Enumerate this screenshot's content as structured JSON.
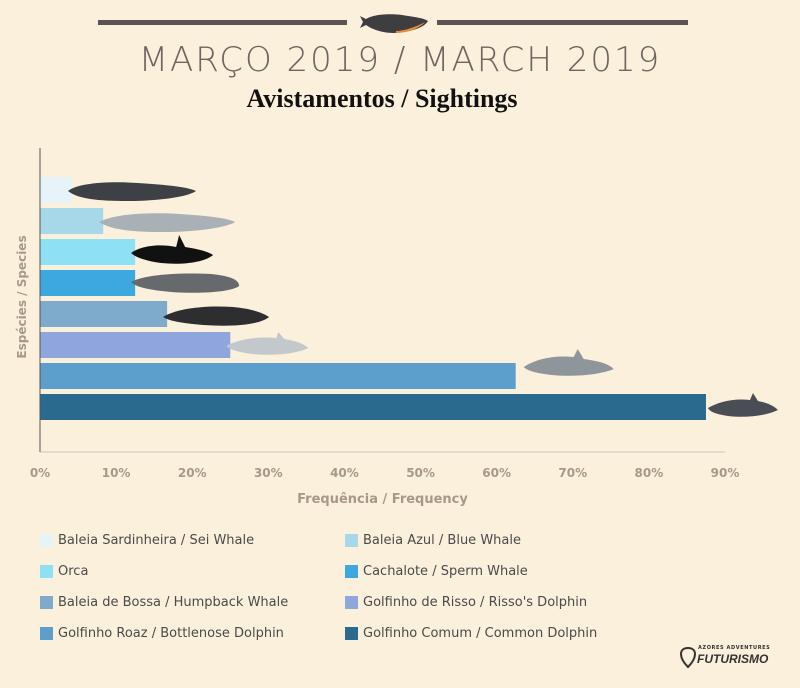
{
  "header": {
    "title": "MARÇO 2019 / MARCH 2019",
    "subtitle": "Avistamentos / Sightings",
    "whale_icon": "whale-silhouette-icon"
  },
  "chart_data": {
    "type": "bar",
    "orientation": "horizontal",
    "ylabel": "Espécies / Species",
    "xlabel": "Frequência / Frequency",
    "xlim": [
      0,
      90
    ],
    "xticks": [
      "0%",
      "10%",
      "20%",
      "30%",
      "40%",
      "50%",
      "60%",
      "70%",
      "80%",
      "90%"
    ],
    "grid": false,
    "legend_position": "bottom",
    "categories": [
      "Baleia Sardinheira / Sei Whale",
      "Baleia Azul / Blue Whale",
      "Orca",
      "Cachalote / Sperm Whale",
      "Baleia de Bossa / Humpback Whale",
      "Golfinho de Risso / Risso's Dolphin",
      "Golfinho Roaz / Bottlenose Dolphin",
      "Golfinho Comum / Common Dolphin"
    ],
    "values": [
      4.2,
      8.3,
      12.5,
      12.5,
      16.7,
      25,
      62.5,
      87.5
    ],
    "colors": [
      "#e6f4fa",
      "#a6d8ea",
      "#8ee0f4",
      "#3ca8e0",
      "#7eaacc",
      "#8ea6dc",
      "#5c9ecc",
      "#2a6a8e"
    ],
    "icons": [
      "sei-whale-icon",
      "blue-whale-icon",
      "orca-icon",
      "sperm-whale-icon",
      "humpback-whale-icon",
      "rissos-dolphin-icon",
      "bottlenose-dolphin-icon",
      "common-dolphin-icon"
    ]
  },
  "logo": {
    "tagline": "AZORES ADVENTURES",
    "wordmark": "FUTURISMO",
    "icon": "futurismo-logo-icon"
  }
}
